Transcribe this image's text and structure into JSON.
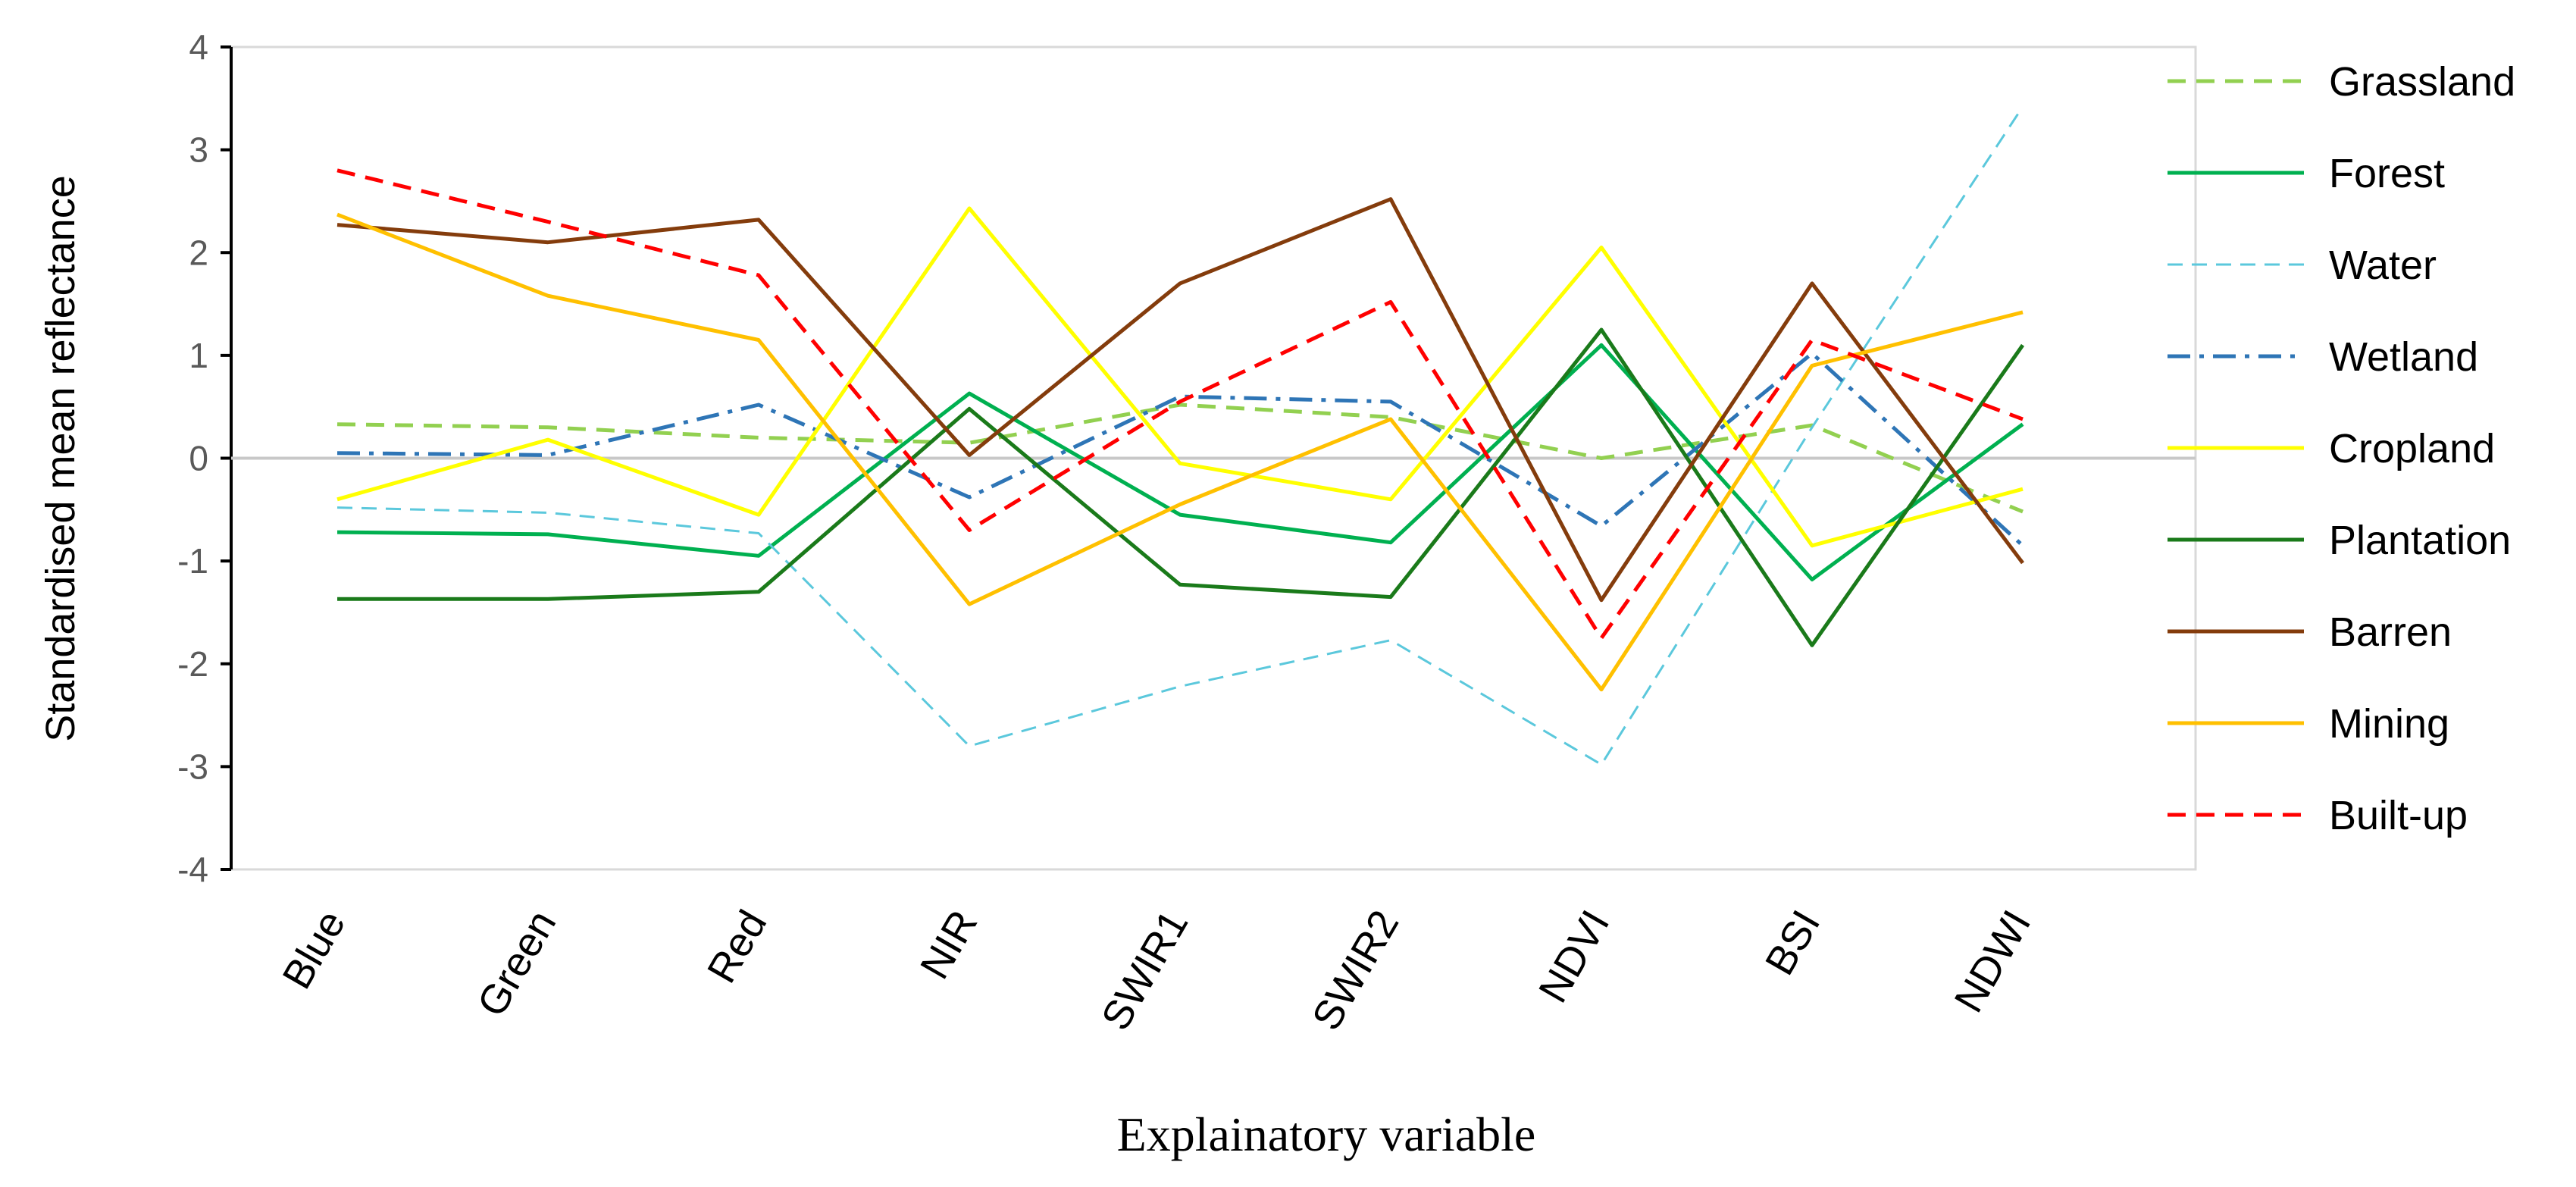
{
  "chart_data": {
    "type": "line",
    "title": "",
    "xlabel": "Explainatory variable",
    "ylabel": "Standardised mean reflectance",
    "ylim": [
      -4,
      4
    ],
    "yticks": [
      4,
      3,
      2,
      1,
      0,
      -1,
      -2,
      -3,
      -4
    ],
    "categories": [
      "Blue",
      "Green",
      "Red",
      "NIR",
      "SWIR1",
      "SWIR2",
      "NDVI",
      "BSI",
      "NDWI"
    ],
    "legend_position": "right",
    "series": [
      {
        "name": "Grassland",
        "color": "#92d050",
        "dash": "dashed",
        "values": [
          0.33,
          0.3,
          0.2,
          0.15,
          0.52,
          0.4,
          0.0,
          0.32,
          -0.52
        ]
      },
      {
        "name": "Forest",
        "color": "#00b050",
        "dash": "solid",
        "values": [
          -0.72,
          -0.74,
          -0.95,
          0.63,
          -0.55,
          -0.82,
          1.1,
          -1.18,
          0.33
        ]
      },
      {
        "name": "Water",
        "color": "#5bc8dc",
        "dash": "dashed-thin",
        "values": [
          -0.48,
          -0.53,
          -0.73,
          -2.8,
          -2.22,
          -1.77,
          -2.98,
          0.3,
          3.42
        ]
      },
      {
        "name": "Wetland",
        "color": "#2e75b6",
        "dash": "dashdot",
        "values": [
          0.05,
          0.03,
          0.52,
          -0.38,
          0.6,
          0.55,
          -0.66,
          1.02,
          -0.85
        ]
      },
      {
        "name": "Cropland",
        "color": "#ffff00",
        "dash": "solid",
        "values": [
          -0.4,
          0.18,
          -0.55,
          2.43,
          -0.05,
          -0.4,
          2.05,
          -0.85,
          -0.3
        ]
      },
      {
        "name": "Plantation",
        "color": "#1a7a1a",
        "dash": "solid",
        "values": [
          -1.37,
          -1.37,
          -1.3,
          0.48,
          -1.23,
          -1.35,
          1.25,
          -1.82,
          1.1
        ]
      },
      {
        "name": "Barren",
        "color": "#843c0c",
        "dash": "solid",
        "values": [
          2.27,
          2.1,
          2.32,
          0.03,
          1.7,
          2.52,
          -1.38,
          1.7,
          -1.02
        ]
      },
      {
        "name": "Mining",
        "color": "#ffc000",
        "dash": "solid",
        "values": [
          2.37,
          1.58,
          1.15,
          -1.42,
          -0.45,
          0.38,
          -2.25,
          0.9,
          1.42
        ]
      },
      {
        "name": "Built-up",
        "color": "#ff0000",
        "dash": "dashed",
        "values": [
          2.8,
          2.3,
          1.78,
          -0.7,
          0.55,
          1.52,
          -1.75,
          1.15,
          0.38
        ]
      }
    ]
  }
}
